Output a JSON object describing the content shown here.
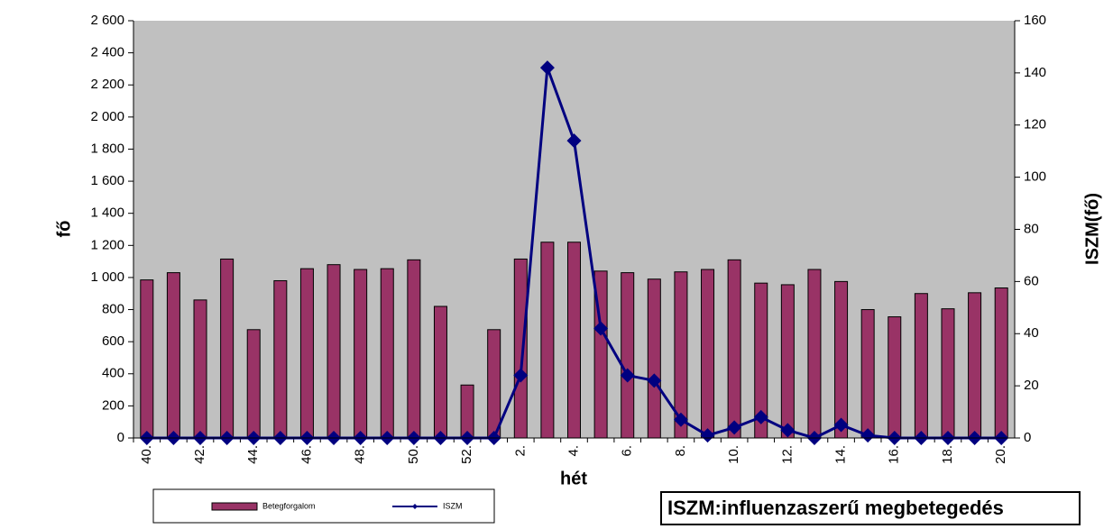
{
  "chart_data": {
    "type": "bar",
    "y_label": "fő",
    "y2_label": "ISZM(fő)",
    "x_label": "hét",
    "note": "ISZM:influenzaszerű megbetegedés",
    "categories": [
      "40.",
      null,
      "42.",
      null,
      "44.",
      null,
      "46.",
      null,
      "48.",
      null,
      "50.",
      null,
      "52.",
      null,
      "2.",
      null,
      "4.",
      null,
      "6.",
      null,
      "8.",
      null,
      "10.",
      null,
      "12.",
      null,
      "14.",
      null,
      "16.",
      null,
      "18.",
      null,
      "20."
    ],
    "series": [
      {
        "name": "Betegforgalom",
        "type": "bar",
        "color": "#993366",
        "values": [
          985,
          1030,
          860,
          1115,
          675,
          980,
          1055,
          1080,
          1050,
          1055,
          1110,
          820,
          330,
          675,
          1115,
          1220,
          1220,
          1040,
          1030,
          990,
          1035,
          1050,
          1110,
          965,
          955,
          1050,
          975,
          800,
          755,
          900,
          805,
          905,
          935
        ]
      },
      {
        "name": "ISZM",
        "type": "line",
        "axis": "y2",
        "color": "#000080",
        "values": [
          0,
          0,
          0,
          0,
          0,
          0,
          0,
          0,
          0,
          0,
          0,
          0,
          0,
          0,
          24,
          142,
          114,
          42,
          24,
          22,
          7,
          1,
          4,
          8,
          3,
          0,
          5,
          1,
          0,
          0,
          0,
          0,
          0
        ]
      }
    ],
    "ylim": [
      0,
      2600
    ],
    "yticks": [
      0,
      200,
      400,
      600,
      800,
      {
        "value": 1000,
        "label": "1 000"
      },
      {
        "value": 1200,
        "label": "1 200"
      },
      {
        "value": 1400,
        "label": "1 400"
      },
      {
        "value": 1600,
        "label": "1 600"
      },
      {
        "value": 1800,
        "label": "1 800"
      },
      {
        "value": 2000,
        "label": "2 000"
      },
      {
        "value": 2200,
        "label": "2 200"
      },
      {
        "value": 2400,
        "label": "2 400"
      },
      {
        "value": 2600,
        "label": "2 600"
      }
    ],
    "y2lim": [
      0,
      160
    ],
    "y2ticks": [
      0,
      20,
      40,
      60,
      80,
      100,
      120,
      140,
      160
    ],
    "background": "#c0c0c0"
  }
}
